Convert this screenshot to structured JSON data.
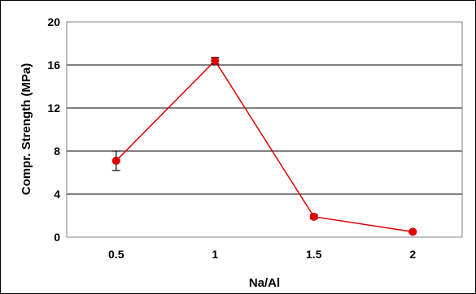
{
  "chart_data": {
    "type": "line",
    "title": "",
    "xlabel": "Na/Al",
    "ylabel": "Compr. Strength (MPa)",
    "categories": [
      "0.5",
      "1",
      "1.5",
      "2"
    ],
    "x": [
      0.5,
      1,
      1.5,
      2
    ],
    "ylim": [
      0,
      20
    ],
    "yticks": [
      "0",
      "4",
      "8",
      "12",
      "16",
      "20"
    ],
    "ytick_values": [
      0,
      4,
      8,
      12,
      16,
      20
    ],
    "grid": true,
    "legend": "none",
    "series": [
      {
        "values": [
          7.1,
          16.4,
          1.9,
          0.5
        ],
        "error": [
          0.9,
          0.3,
          0.2,
          0.1
        ],
        "line_color": "#e00000",
        "marker_color": "#e00000"
      }
    ]
  }
}
